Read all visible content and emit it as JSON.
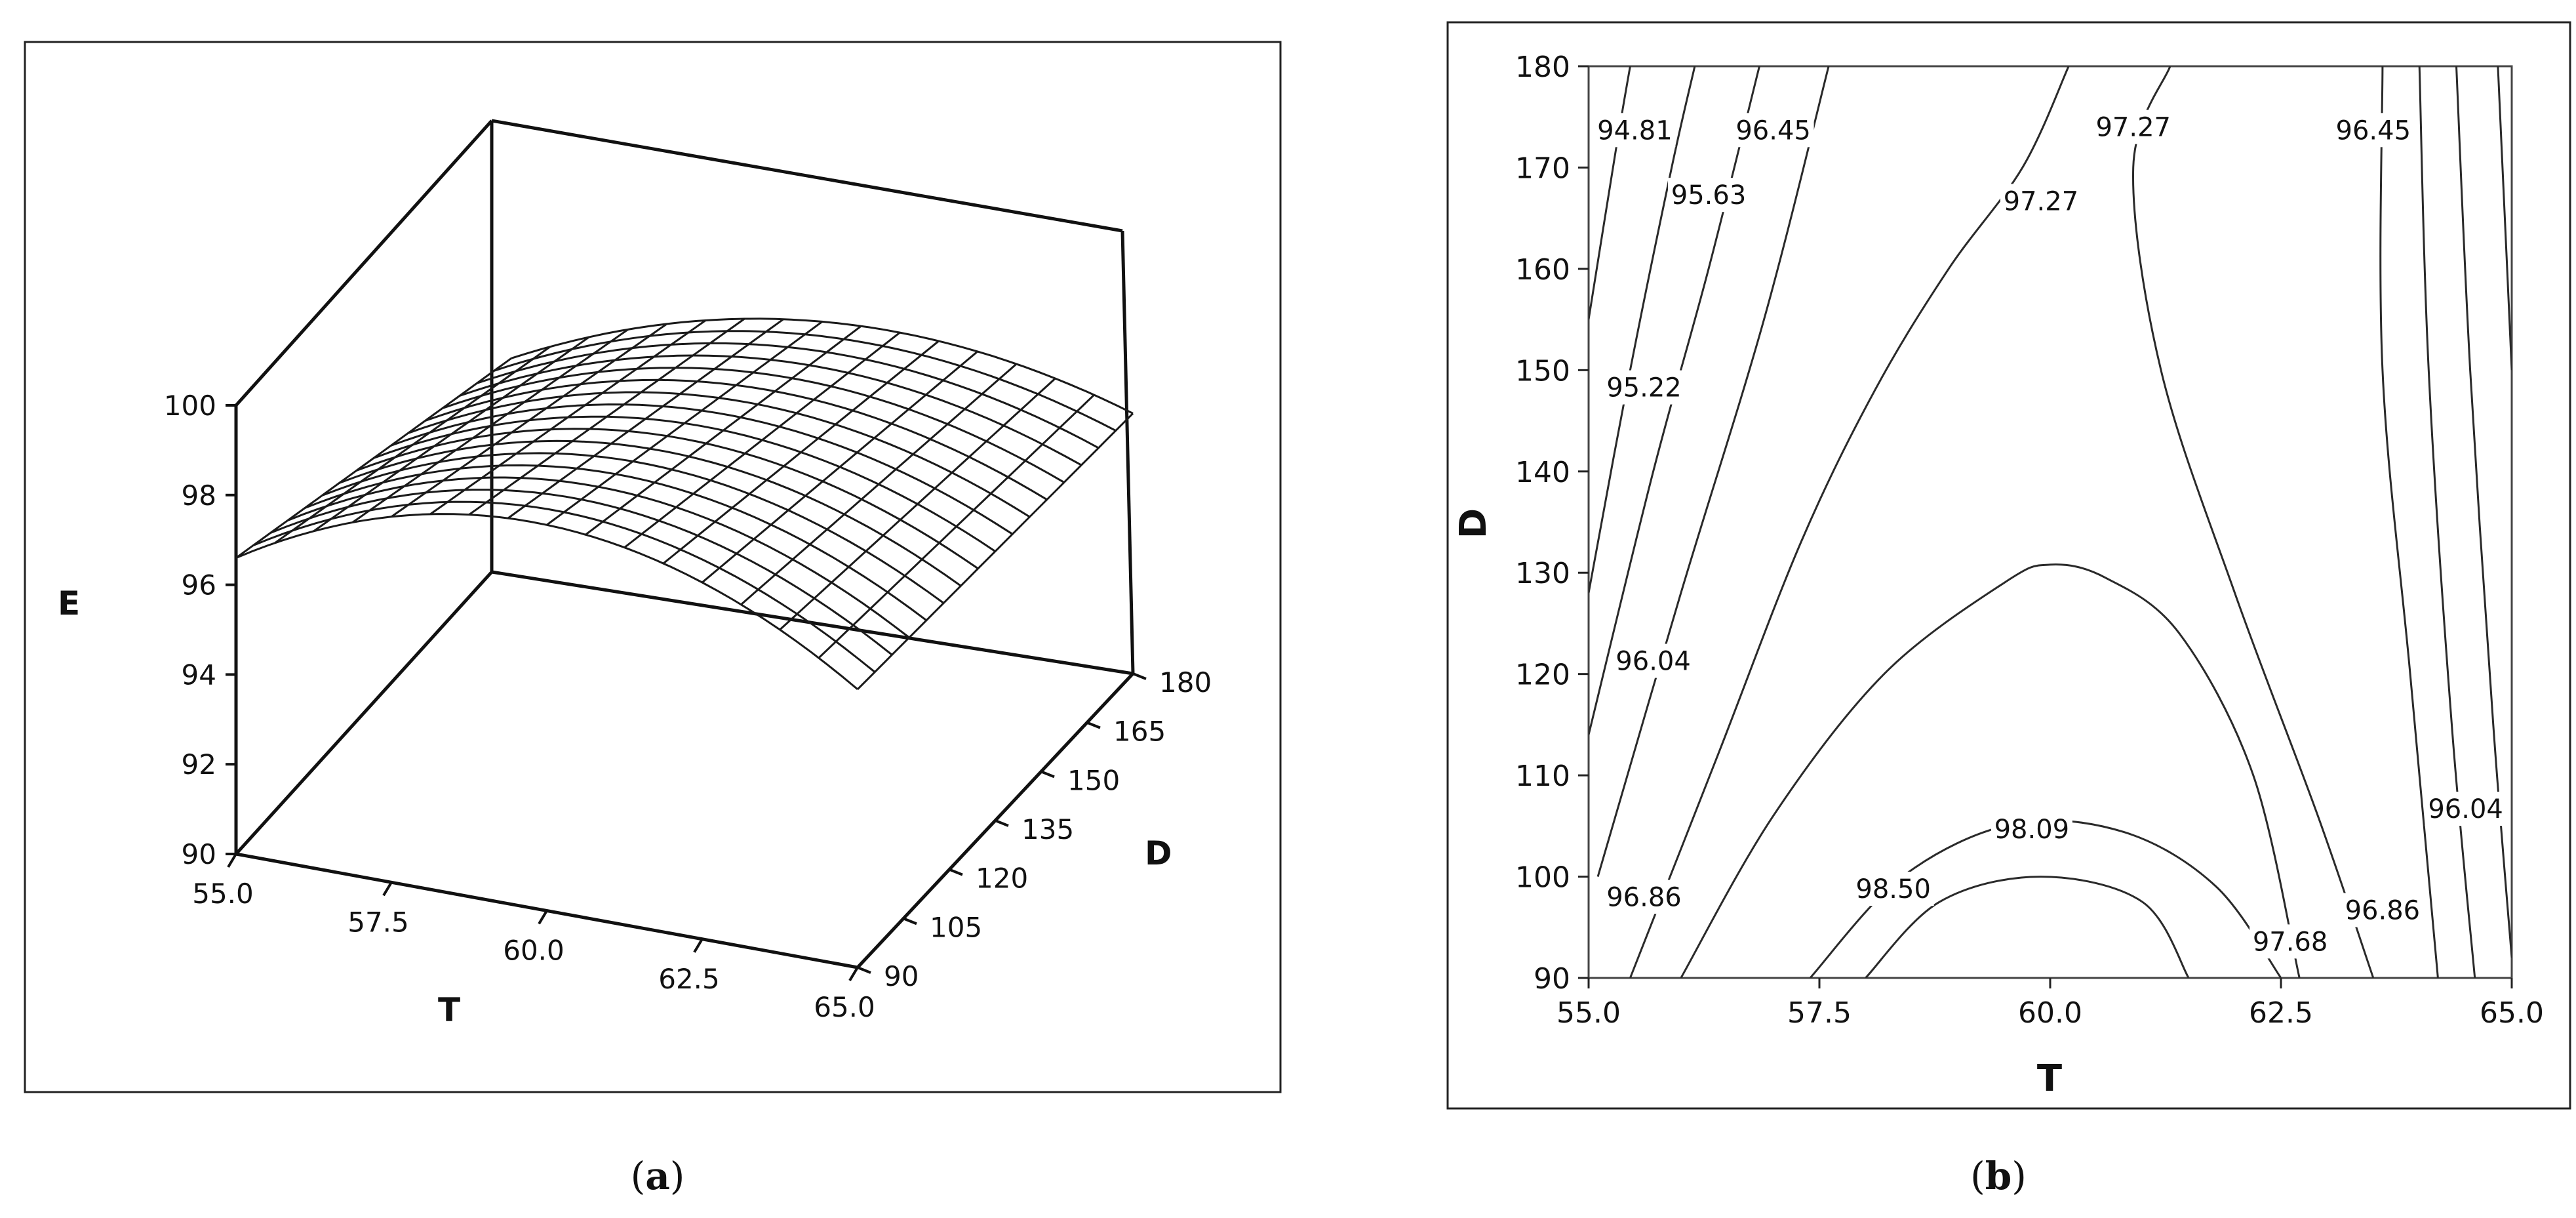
{
  "chart_data": [
    {
      "type": "surface",
      "panel_label": "a",
      "xlabel": "T",
      "ylabel": "D",
      "zlabel": "E",
      "xlim": [
        55.0,
        65.0
      ],
      "ylim": [
        90,
        180
      ],
      "zlim": [
        90,
        100
      ],
      "x_ticks": [
        "55.0",
        "57.5",
        "60.0",
        "62.5",
        "65.0"
      ],
      "y_ticks": [
        "90",
        "105",
        "120",
        "135",
        "150",
        "165",
        "180"
      ],
      "z_ticks": [
        "90",
        "92",
        "94",
        "96",
        "98",
        "100"
      ],
      "surface_corners": [
        {
          "T": 55.0,
          "D": 90,
          "E": 96.6
        },
        {
          "T": 65.0,
          "D": 90,
          "E": 96.2
        },
        {
          "T": 55.0,
          "D": 180,
          "E": 94.5
        },
        {
          "T": 65.0,
          "D": 180,
          "E": 95.8
        }
      ],
      "surface_peak": {
        "T": 60.0,
        "D": 90,
        "E": 98.6
      }
    },
    {
      "type": "contour",
      "panel_label": "b",
      "xlabel": "T",
      "ylabel": "D",
      "xlim": [
        55.0,
        65.0
      ],
      "ylim": [
        90,
        180
      ],
      "x_ticks": [
        "55.0",
        "57.5",
        "60.0",
        "62.5",
        "65.0"
      ],
      "y_ticks": [
        "90",
        "100",
        "110",
        "120",
        "130",
        "140",
        "150",
        "160",
        "170",
        "180"
      ],
      "contour_labels": [
        {
          "text": "94.81",
          "T": 55.5,
          "D": 173.7
        },
        {
          "text": "96.45",
          "T": 57.0,
          "D": 173.7
        },
        {
          "text": "95.63",
          "T": 56.3,
          "D": 167.3
        },
        {
          "text": "97.27",
          "T": 60.9,
          "D": 174.0
        },
        {
          "text": "97.27",
          "T": 59.9,
          "D": 166.7
        },
        {
          "text": "96.45",
          "T": 63.5,
          "D": 173.7
        },
        {
          "text": "95.22",
          "T": 55.6,
          "D": 148.3
        },
        {
          "text": "96.04",
          "T": 55.7,
          "D": 121.3
        },
        {
          "text": "98.09",
          "T": 59.8,
          "D": 104.7
        },
        {
          "text": "96.04",
          "T": 64.5,
          "D": 106.7
        },
        {
          "text": "96.86",
          "T": 55.6,
          "D": 98.0
        },
        {
          "text": "98.50",
          "T": 58.3,
          "D": 98.8
        },
        {
          "text": "97.68",
          "T": 62.6,
          "D": 93.6
        },
        {
          "text": "96.86",
          "T": 63.6,
          "D": 96.7
        }
      ]
    }
  ]
}
